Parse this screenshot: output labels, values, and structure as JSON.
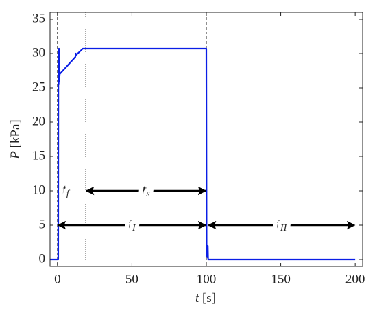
{
  "chart_data": {
    "type": "line",
    "xlabel": {
      "var": "t",
      "unit": " [s]"
    },
    "ylabel": {
      "var": "P",
      "unit": " [kPa]"
    },
    "x": [
      -5,
      0.5,
      0.6,
      0.8,
      1.0,
      1.2,
      1.5,
      12,
      12.3,
      12.6,
      17,
      100,
      100.2,
      100.5,
      100.8,
      101,
      101.2,
      102,
      200
    ],
    "series": [
      {
        "color": "#0a1ee6",
        "values": [
          0,
          0,
          30.5,
          25.5,
          30.7,
          26,
          27,
          29.5,
          30,
          29.8,
          30.7,
          30.7,
          0.5,
          2,
          0.3,
          2,
          0,
          0,
          0
        ]
      }
    ],
    "xlim": [
      -5,
      205
    ],
    "ylim": [
      -1,
      36
    ],
    "xticks": [
      0,
      50,
      100,
      150,
      200
    ],
    "yticks": [
      0,
      5,
      10,
      15,
      20,
      25,
      30,
      35
    ],
    "vlines": [
      {
        "x": 0,
        "style": "dashed"
      },
      {
        "x": 19,
        "style": "dotted"
      },
      {
        "x": 100,
        "style": "dashed"
      }
    ],
    "annotations": [
      {
        "text": "t",
        "sub": "f",
        "x": 5.5,
        "y": 10
      },
      {
        "text": "t",
        "sub": "s",
        "x": 19,
        "to": 100,
        "y": 10
      },
      {
        "text": "t",
        "sub": "I",
        "x": 0,
        "to": 100,
        "y": 5
      },
      {
        "text": "t",
        "sub": "II",
        "x": 101,
        "to": 200,
        "y": 5
      }
    ]
  }
}
